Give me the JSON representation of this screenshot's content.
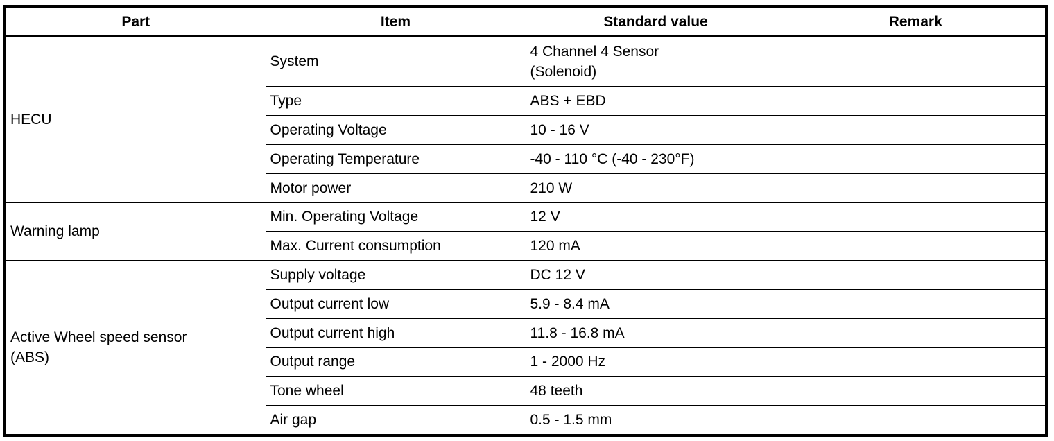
{
  "headers": [
    "Part",
    "Item",
    "Standard value",
    "Remark"
  ],
  "groups": [
    {
      "part": "HECU",
      "rows": [
        {
          "item": "System",
          "value": "4 Channel 4 Sensor\n(Solenoid)",
          "remark": ""
        },
        {
          "item": "Type",
          "value": "ABS + EBD",
          "remark": ""
        },
        {
          "item": "Operating Voltage",
          "value": "10 - 16 V",
          "remark": ""
        },
        {
          "item": "Operating Temperature",
          "value": "-40 - 110 °C (-40 - 230°F)",
          "remark": ""
        },
        {
          "item": "Motor power",
          "value": "210 W",
          "remark": ""
        }
      ]
    },
    {
      "part": "Warning lamp",
      "rows": [
        {
          "item": "Min. Operating Voltage",
          "value": "12 V",
          "remark": ""
        },
        {
          "item": "Max. Current consumption",
          "value": "120 mA",
          "remark": ""
        }
      ]
    },
    {
      "part": "Active Wheel speed sensor\n(ABS)",
      "rows": [
        {
          "item": "Supply voltage",
          "value": "DC 12 V",
          "remark": ""
        },
        {
          "item": "Output current low",
          "value": "5.9 - 8.4 mA",
          "remark": ""
        },
        {
          "item": "Output current high",
          "value": "11.8 - 16.8 mA",
          "remark": ""
        },
        {
          "item": "Output range",
          "value": "1 - 2000 Hz",
          "remark": ""
        },
        {
          "item": "Tone wheel",
          "value": "48 teeth",
          "remark": ""
        },
        {
          "item": "Air gap",
          "value": "0.5 - 1.5 mm",
          "remark": ""
        }
      ]
    }
  ]
}
